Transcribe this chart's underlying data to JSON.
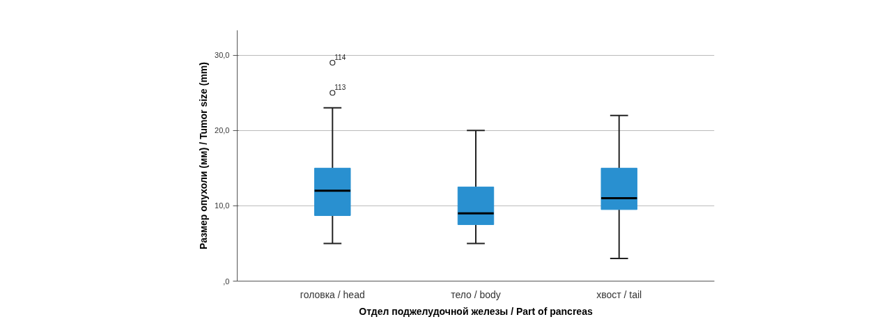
{
  "chart_data": {
    "type": "box",
    "xlabel": "Отдел поджелудочной железы / Part of pancreas",
    "ylabel": "Размер опухоли (мм) / Tumor size (mm)",
    "categories": [
      "головка / head",
      "тело / body",
      "хвост / tail"
    ],
    "color": "#2990d0",
    "boxes": [
      {
        "low": 5,
        "q1": 8.7,
        "median": 12,
        "q3": 15,
        "high": 23,
        "outliers": [
          29,
          25
        ]
      },
      {
        "low": 5,
        "q1": 7.5,
        "median": 9,
        "q3": 12.5,
        "high": 20
      },
      {
        "low": 3,
        "q1": 9.5,
        "median": 11,
        "q3": 15,
        "high": 22
      }
    ],
    "ylim": [
      0,
      33.3
    ],
    "yticks": [
      {
        "value": 0,
        "label": ",0"
      },
      {
        "value": 10,
        "label": "10,0"
      },
      {
        "value": 20,
        "label": "20,0"
      },
      {
        "value": 30,
        "label": "30,0"
      }
    ],
    "grid": "y",
    "annotations": [
      "114",
      "113"
    ]
  }
}
